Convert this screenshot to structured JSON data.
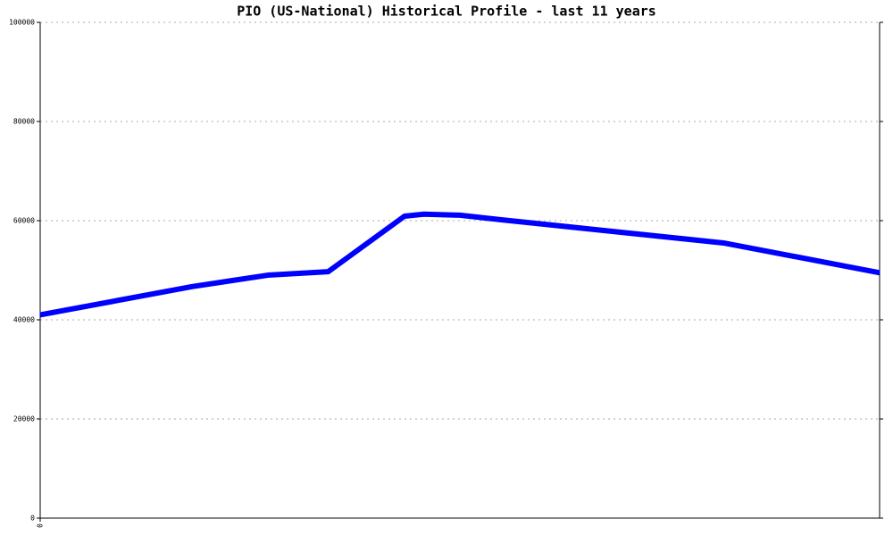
{
  "chart_data": {
    "type": "line",
    "title": "PIO (US-National) Historical Profile - last 11 years",
    "x": [
      0,
      1.81,
      2.71,
      3.43,
      4.34,
      4.57,
      5.0,
      5.48,
      8.14,
      10
    ],
    "series": [
      {
        "color": "#0000ff",
        "values": [
          41000,
          46700,
          49000,
          49700,
          60900,
          61300,
          61100,
          60200,
          55500,
          49500
        ]
      }
    ],
    "xlim": [
      0,
      10
    ],
    "xticks": [
      0
    ],
    "ylim": [
      0,
      100000
    ],
    "yticks": [
      0,
      20000,
      40000,
      60000,
      80000,
      100000
    ],
    "grid": true
  }
}
